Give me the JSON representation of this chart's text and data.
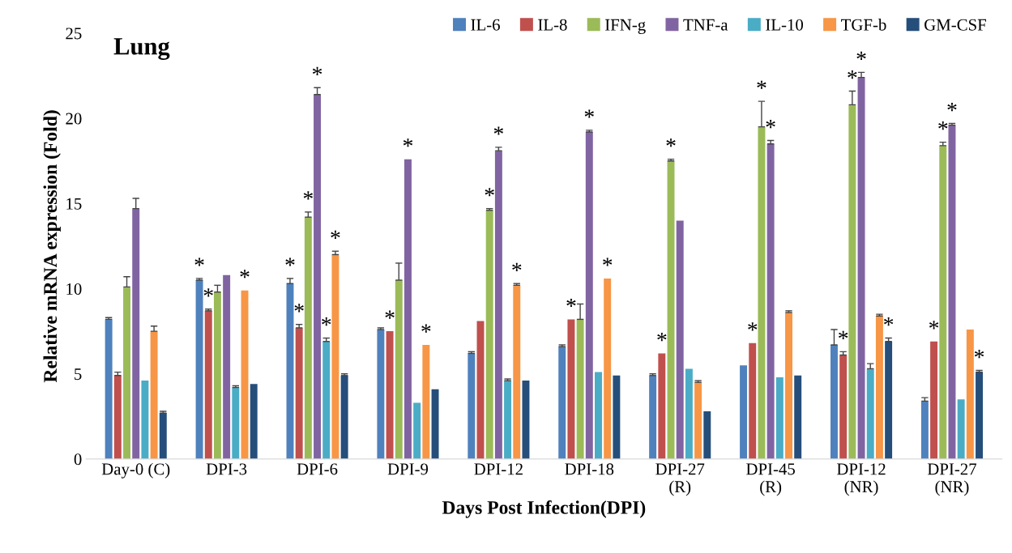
{
  "chart_data": {
    "type": "bar",
    "title": "Lung",
    "xlabel": "Days Post Infection(DPI)",
    "ylabel": "Relative mRNA expression (Fold)",
    "categories": [
      "Day-0 (C)",
      "DPI-3",
      "DPI-6",
      "DPI-9",
      "DPI-12",
      "DPI-18",
      "DPI-27\n(R)",
      "DPI-45\n(R)",
      "DPI-12\n(NR)",
      "DPI-27\n(NR)"
    ],
    "series": [
      {
        "name": "IL-6",
        "color": "#4f81bd",
        "values": [
          8.2,
          10.5,
          10.3,
          7.6,
          6.2,
          6.6,
          4.9,
          5.5,
          6.7,
          3.4
        ],
        "errors": [
          0.1,
          0.1,
          0.3,
          0.1,
          0.1,
          0.1,
          0.1,
          null,
          0.9,
          0.2
        ],
        "value_labels": [
          null,
          "*",
          "*",
          null,
          null,
          null,
          null,
          null,
          null,
          null
        ]
      },
      {
        "name": "IL-8",
        "color": "#c0504d",
        "values": [
          4.9,
          8.7,
          7.7,
          7.5,
          8.1,
          8.2,
          6.2,
          6.8,
          6.1,
          6.9
        ],
        "errors": [
          0.2,
          0.1,
          0.2,
          null,
          null,
          null,
          null,
          null,
          0.2,
          null
        ],
        "value_labels": [
          null,
          "*",
          "*",
          "*",
          null,
          "*",
          "*",
          "*",
          "*",
          "*"
        ]
      },
      {
        "name": "IFN-g",
        "color": "#9bbb59",
        "values": [
          10.1,
          9.8,
          14.2,
          10.5,
          14.6,
          8.2,
          17.5,
          19.5,
          20.8,
          18.4
        ],
        "errors": [
          0.6,
          0.4,
          0.3,
          1.0,
          0.1,
          0.9,
          0.1,
          1.5,
          0.8,
          0.2
        ],
        "value_labels": [
          null,
          null,
          "*",
          null,
          "*",
          null,
          "*",
          "*",
          "*",
          "*"
        ]
      },
      {
        "name": "TNF-a",
        "color": "#8064a2",
        "values": [
          14.7,
          10.8,
          21.4,
          17.6,
          18.1,
          19.2,
          14.0,
          18.5,
          22.4,
          19.6
        ],
        "errors": [
          0.6,
          null,
          0.4,
          null,
          0.2,
          0.1,
          null,
          0.2,
          0.3,
          0.1
        ],
        "value_labels": [
          null,
          null,
          "*",
          "*",
          "*",
          "*",
          null,
          "*",
          "*",
          "*"
        ]
      },
      {
        "name": "IL-10",
        "color": "#4bacc6",
        "values": [
          4.6,
          4.2,
          6.9,
          3.3,
          4.6,
          5.1,
          5.3,
          4.8,
          5.3,
          3.5
        ],
        "errors": [
          null,
          0.1,
          0.2,
          null,
          0.1,
          null,
          null,
          null,
          0.3,
          null
        ],
        "value_labels": [
          null,
          null,
          "*",
          null,
          null,
          null,
          null,
          null,
          null,
          null
        ]
      },
      {
        "name": "TGF-b",
        "color": "#f79646",
        "values": [
          7.5,
          9.9,
          12.0,
          6.7,
          10.2,
          10.6,
          4.5,
          8.6,
          8.4,
          7.6
        ],
        "errors": [
          0.3,
          null,
          0.2,
          null,
          0.1,
          null,
          0.1,
          0.1,
          0.1,
          null
        ],
        "value_labels": [
          null,
          "*",
          "*",
          "*",
          "*",
          "*",
          null,
          null,
          null,
          null
        ]
      },
      {
        "name": "GM-CSF",
        "color": "#254e7b",
        "values": [
          2.7,
          4.4,
          4.9,
          4.1,
          4.6,
          4.9,
          2.8,
          4.9,
          6.9,
          5.1
        ],
        "errors": [
          0.1,
          null,
          0.1,
          null,
          null,
          null,
          null,
          null,
          0.2,
          0.1
        ],
        "value_labels": [
          null,
          null,
          null,
          null,
          null,
          null,
          null,
          null,
          "*",
          "*"
        ]
      }
    ],
    "ylim": [
      0,
      25
    ],
    "yticks": [
      0,
      5,
      10,
      15,
      20,
      25
    ],
    "grid": false,
    "legend": "top right"
  }
}
